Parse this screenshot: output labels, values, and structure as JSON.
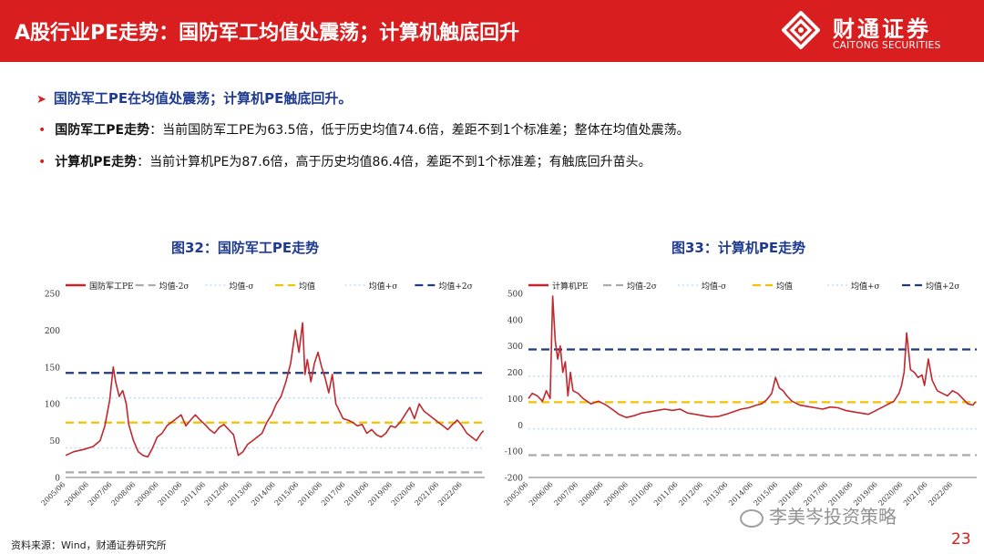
{
  "header": {
    "title": "A股行业PE走势：国防军工均值处震荡；计算机触底回升",
    "brand_cn": "财通证券",
    "brand_en": "CAITONG SECURITIES"
  },
  "headline": "国防军工PE在均值处震荡；计算机PE触底回升。",
  "bullets": [
    {
      "label": "国防军工PE走势",
      "text": "：当前国防军工PE为63.5倍，低于历史均值74.6倍，差距不到1个标准差；整体在均值处震荡。"
    },
    {
      "label": "计算机PE走势",
      "text": "：当前计算机PE为87.6倍，高于历史均值86.4倍，差距不到1个标准差；有触底回升苗头。"
    }
  ],
  "colors": {
    "header": "#d81e1e",
    "navy": "#1f3b8f",
    "series": "#c0282e",
    "mean": "#f2c200",
    "sigma2": "#1f3b7a",
    "minus2": "#aaaaaa",
    "sigma1": "#bfe0f5"
  },
  "chart_data": [
    {
      "type": "line",
      "title": "图32：国防军工PE走势",
      "legend": [
        "国防军工PE",
        "均值-2σ",
        "均值-σ",
        "均值",
        "均值+σ",
        "均值+2σ"
      ],
      "ylim": [
        0,
        250
      ],
      "yticks": [
        0,
        50,
        100,
        150,
        200,
        250
      ],
      "xticks": [
        "2005/06",
        "2006/06",
        "2007/06",
        "2008/06",
        "2009/06",
        "2010/06",
        "2011/06",
        "2012/06",
        "2013/06",
        "2014/06",
        "2015/06",
        "2016/06",
        "2017/06",
        "2018/06",
        "2019/06",
        "2020/06",
        "2021/06",
        "2022/06"
      ],
      "current": 63.5,
      "mean": 74.6,
      "lines": {
        "minus2": 7,
        "minus1": 40,
        "mean": 74.6,
        "plus1": 108,
        "plus2": 142
      },
      "x": [
        2005.45,
        2005.8,
        2006.2,
        2006.6,
        2006.9,
        2007.1,
        2007.3,
        2007.45,
        2007.55,
        2007.7,
        2007.85,
        2008.0,
        2008.1,
        2008.3,
        2008.5,
        2008.7,
        2008.9,
        2009.1,
        2009.3,
        2009.5,
        2009.7,
        2009.9,
        2010.1,
        2010.3,
        2010.5,
        2010.7,
        2010.9,
        2011.1,
        2011.3,
        2011.5,
        2011.7,
        2011.9,
        2012.1,
        2012.3,
        2012.5,
        2012.7,
        2012.9,
        2013.1,
        2013.3,
        2013.5,
        2013.7,
        2013.9,
        2014.1,
        2014.3,
        2014.5,
        2014.7,
        2014.9,
        2015.1,
        2015.25,
        2015.4,
        2015.5,
        2015.6,
        2015.75,
        2015.9,
        2016.05,
        2016.2,
        2016.35,
        2016.5,
        2016.65,
        2016.8,
        2016.95,
        2017.1,
        2017.3,
        2017.5,
        2017.7,
        2017.9,
        2018.1,
        2018.3,
        2018.5,
        2018.7,
        2018.9,
        2019.1,
        2019.3,
        2019.5,
        2019.7,
        2019.9,
        2020.1,
        2020.3,
        2020.5,
        2020.7,
        2020.9,
        2021.1,
        2021.3,
        2021.5,
        2021.7,
        2021.9,
        2022.1,
        2022.3,
        2022.5,
        2022.7,
        2022.9,
        2023.0
      ],
      "values": [
        30,
        35,
        38,
        42,
        50,
        70,
        105,
        150,
        130,
        110,
        118,
        100,
        72,
        50,
        35,
        30,
        28,
        40,
        55,
        60,
        70,
        75,
        80,
        85,
        70,
        78,
        85,
        78,
        72,
        65,
        60,
        68,
        72,
        65,
        58,
        30,
        35,
        45,
        50,
        55,
        60,
        75,
        85,
        100,
        110,
        130,
        155,
        200,
        170,
        210,
        140,
        160,
        130,
        155,
        170,
        150,
        135,
        115,
        140,
        100,
        90,
        80,
        78,
        75,
        70,
        72,
        60,
        65,
        58,
        55,
        60,
        70,
        68,
        75,
        85,
        95,
        80,
        100,
        90,
        85,
        80,
        75,
        70,
        65,
        72,
        78,
        70,
        60,
        55,
        50,
        60,
        63.5
      ]
    },
    {
      "type": "line",
      "title": "图33：计算机PE走势",
      "legend": [
        "计算机PE",
        "均值-2σ",
        "均值-σ",
        "均值",
        "均值+σ",
        "均值+2σ"
      ],
      "ylim": [
        -200,
        500
      ],
      "yticks": [
        -200,
        -100,
        0,
        100,
        200,
        300,
        400,
        500
      ],
      "xticks": [
        "2005/06",
        "2006/06",
        "2007/06",
        "2008/06",
        "2009/06",
        "2010/06",
        "2011/06",
        "2012/06",
        "2013/06",
        "2014/06",
        "2015/06",
        "2016/06",
        "2017/06",
        "2018/06",
        "2019/06",
        "2020/06",
        "2021/06",
        "2022/06"
      ],
      "current": 87.6,
      "mean": 86.4,
      "lines": {
        "minus2": -115,
        "minus1": -15,
        "mean": 86.4,
        "plus1": 185,
        "plus2": 287
      },
      "x": [
        2005.45,
        2005.6,
        2005.8,
        2006.0,
        2006.15,
        2006.3,
        2006.4,
        2006.5,
        2006.6,
        2006.7,
        2006.8,
        2006.9,
        2007.0,
        2007.1,
        2007.2,
        2007.4,
        2007.6,
        2007.9,
        2008.2,
        2008.5,
        2008.8,
        2009.0,
        2009.3,
        2009.6,
        2009.9,
        2010.2,
        2010.5,
        2010.8,
        2011.1,
        2011.4,
        2011.7,
        2012.0,
        2012.3,
        2012.6,
        2012.9,
        2013.2,
        2013.5,
        2013.8,
        2014.1,
        2014.4,
        2014.6,
        2014.8,
        2015.0,
        2015.15,
        2015.3,
        2015.45,
        2015.6,
        2015.8,
        2016.1,
        2016.4,
        2016.7,
        2017.0,
        2017.3,
        2017.6,
        2017.9,
        2018.2,
        2018.5,
        2018.8,
        2019.1,
        2019.4,
        2019.6,
        2019.8,
        2020.0,
        2020.1,
        2020.2,
        2020.3,
        2020.45,
        2020.6,
        2020.75,
        2020.9,
        2021.0,
        2021.15,
        2021.3,
        2021.5,
        2021.7,
        2021.9,
        2022.1,
        2022.3,
        2022.5,
        2022.7,
        2022.9,
        2023.0
      ],
      "values": [
        100,
        120,
        110,
        90,
        130,
        100,
        490,
        320,
        250,
        300,
        200,
        240,
        110,
        200,
        130,
        120,
        100,
        80,
        90,
        75,
        55,
        40,
        28,
        35,
        45,
        50,
        55,
        60,
        55,
        60,
        45,
        40,
        35,
        30,
        32,
        40,
        50,
        60,
        65,
        75,
        80,
        95,
        120,
        180,
        140,
        130,
        110,
        90,
        75,
        70,
        65,
        60,
        68,
        65,
        55,
        50,
        45,
        40,
        55,
        70,
        80,
        90,
        120,
        150,
        200,
        350,
        210,
        200,
        180,
        190,
        150,
        250,
        170,
        130,
        120,
        110,
        130,
        120,
        100,
        80,
        75,
        87.6
      ]
    }
  ],
  "source": "资料来源：Wind，财通证券研究所",
  "watermark": "李美岑投资策略",
  "page_number": "23"
}
